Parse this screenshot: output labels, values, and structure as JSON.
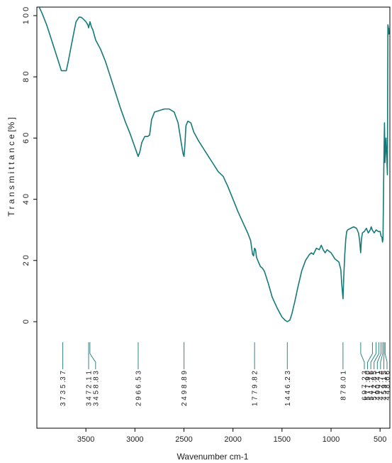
{
  "chart_data": {
    "type": "line",
    "title": "",
    "xlabel": "Wavenumber cm-1",
    "ylabel": "T r a n s m i t t a n c e [% ]",
    "xlim": [
      4000,
      400
    ],
    "ylim": [
      -25,
      103
    ],
    "x_ticks": [
      3500,
      3000,
      2500,
      2000,
      1500,
      1000,
      500
    ],
    "x_tick_labels": [
      "3500",
      "3000",
      "2500",
      "2000",
      "1500",
      "1000",
      "500"
    ],
    "y_ticks": [
      0,
      20,
      40,
      60,
      80,
      100
    ],
    "y_tick_labels": [
      "0",
      "2 0",
      "4 0",
      "6 0",
      "8 0",
      "1 0 0"
    ],
    "grid": false,
    "color": "#167a7a",
    "series": [
      {
        "x": [
          3980,
          3950,
          3900,
          3850,
          3800,
          3750,
          3735,
          3700,
          3680,
          3650,
          3620,
          3600,
          3570,
          3550,
          3530,
          3500,
          3480,
          3472,
          3465,
          3458,
          3450,
          3440,
          3430,
          3400,
          3350,
          3300,
          3250,
          3200,
          3150,
          3100,
          3050,
          3000,
          2967,
          2950,
          2930,
          2900,
          2870,
          2850,
          2830,
          2800,
          2750,
          2700,
          2650,
          2600,
          2560,
          2530,
          2510,
          2499,
          2490,
          2480,
          2460,
          2430,
          2400,
          2350,
          2300,
          2250,
          2200,
          2150,
          2100,
          2050,
          2000,
          1950,
          1900,
          1850,
          1820,
          1800,
          1790,
          1780,
          1770,
          1760,
          1740,
          1720,
          1700,
          1680,
          1660,
          1640,
          1600,
          1550,
          1500,
          1470,
          1446,
          1420,
          1400,
          1370,
          1340,
          1300,
          1260,
          1220,
          1200,
          1180,
          1150,
          1120,
          1100,
          1080,
          1060,
          1040,
          1000,
          980,
          960,
          940,
          920,
          900,
          890,
          878,
          870,
          860,
          850,
          840,
          830,
          800,
          770,
          740,
          720,
          710,
          698,
          690,
          680,
          660,
          640,
          620,
          600,
          590,
          580,
          560,
          540,
          520,
          500,
          490,
          480,
          475,
          470,
          460,
          455,
          450,
          440,
          430,
          425,
          420,
          415,
          410,
          405
        ],
        "y": [
          103,
          101,
          97,
          92,
          87,
          82,
          82,
          82,
          85,
          90,
          95,
          98,
          99.5,
          99.5,
          99,
          98,
          97,
          96,
          97,
          98,
          97,
          96,
          95.5,
          92,
          89,
          85,
          80,
          75,
          70,
          65.5,
          61.5,
          57,
          54,
          55.5,
          58.5,
          60.5,
          60.5,
          61,
          66,
          68.5,
          69,
          69.5,
          69.5,
          68.5,
          65,
          59,
          55,
          54,
          58,
          64,
          65.5,
          65,
          62,
          59,
          56.5,
          54,
          51.5,
          49,
          47.5,
          44,
          40,
          36,
          32.5,
          29,
          26.5,
          22,
          21.5,
          24,
          23.5,
          21,
          19.5,
          18,
          17.5,
          16.5,
          14.5,
          12.5,
          8,
          4.5,
          1.5,
          0.5,
          0,
          0.5,
          2.5,
          6.5,
          11,
          16.5,
          20,
          22,
          22.5,
          22,
          24,
          23.5,
          25,
          23.5,
          22.5,
          23.5,
          22.5,
          21.5,
          20.5,
          20,
          19.5,
          17,
          12,
          7.5,
          15,
          22,
          27,
          29.5,
          30,
          30.5,
          31,
          30.5,
          29,
          27,
          22.5,
          27,
          29,
          29.5,
          30.5,
          29,
          30,
          31,
          30,
          29,
          30,
          29.5,
          29.5,
          28,
          27.5,
          26,
          27,
          55,
          65,
          52,
          60,
          52,
          48,
          97,
          96,
          94,
          96
        ]
      }
    ],
    "peak_labels": [
      "3 7 3 5 .3 7",
      "3 4 7 2 .1 1",
      "3 4 5 8 .8 3",
      "2 9 6 6 .5 3",
      "2 4 9 8 .8 9",
      "1 7 7 9 .8 2",
      "1 4 4 6 .2 3",
      "8 7 8 .0 1",
      "6 9 7 .2 3",
      "5 7 7 .9 0",
      "5 4 1 .7 6",
      "5 1 2 .8 5",
      "4 9 0 .4 1",
      "4 7 2 .7 4",
      "4 5 9 .1 5",
      "4 4 8 .6 6"
    ],
    "peak_positions": [
      3735.37,
      3472.11,
      3458.83,
      2966.53,
      2498.89,
      1779.82,
      1446.23,
      878.01,
      697.23,
      577.9,
      541.76,
      512.85,
      490.41,
      472.74,
      459.15,
      448.66
    ]
  }
}
